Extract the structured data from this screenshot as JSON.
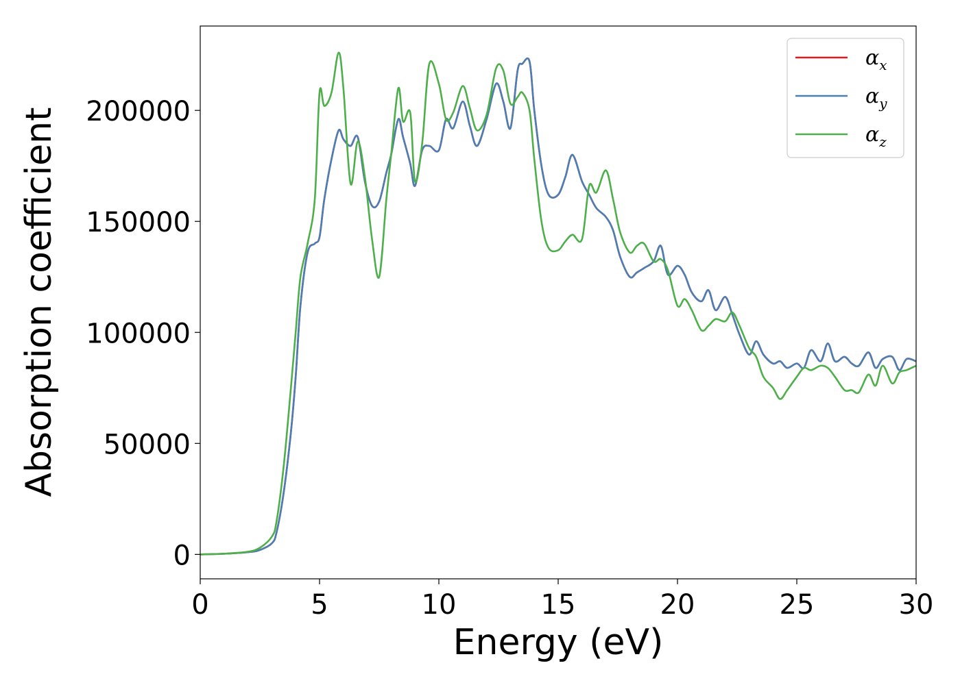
{
  "chart_data": {
    "type": "line",
    "title": "",
    "xlabel": "Energy (eV)",
    "ylabel": "Absorption coefficient",
    "xlim": [
      0,
      30
    ],
    "ylim": [
      -11000,
      238000
    ],
    "xticks": [
      0,
      5,
      10,
      15,
      20,
      25,
      30
    ],
    "xtick_labels": [
      "0",
      "5",
      "10",
      "15",
      "20",
      "25",
      "30"
    ],
    "yticks": [
      0,
      50000,
      100000,
      150000,
      200000
    ],
    "ytick_labels": [
      "0",
      "50000",
      "100000",
      "150000",
      "200000"
    ],
    "grid": false,
    "legend_position": "top-right",
    "series": [
      {
        "name": "αx",
        "symbol": "α",
        "subscript": "x",
        "color": "#e41a1c",
        "x": [
          0,
          1,
          2,
          2.5,
          3,
          3.2,
          3.5,
          3.8,
          4,
          4.2,
          4.5,
          4.8,
          5,
          5.2,
          5.5,
          5.8,
          6,
          6.3,
          6.6,
          6.9,
          7.2,
          7.5,
          7.8,
          8,
          8.3,
          8.5,
          8.8,
          9,
          9.3,
          9.6,
          10,
          10.3,
          10.6,
          11,
          11.3,
          11.6,
          12,
          12.4,
          12.7,
          13,
          13.3,
          13.5,
          13.8,
          14,
          14.3,
          14.6,
          15,
          15.3,
          15.6,
          16,
          16.3,
          16.6,
          17,
          17.3,
          17.6,
          18,
          18.3,
          18.6,
          19,
          19.3,
          19.6,
          20,
          20.3,
          20.6,
          21,
          21.3,
          21.6,
          22,
          22.3,
          22.6,
          23,
          23.3,
          23.6,
          24,
          24.3,
          24.6,
          25,
          25.3,
          25.6,
          26,
          26.3,
          26.6,
          27,
          27.3,
          27.6,
          28,
          28.3,
          28.6,
          29,
          29.3,
          29.6,
          30
        ],
        "y": [
          0,
          300,
          1000,
          2000,
          5000,
          10000,
          28000,
          55000,
          80000,
          112000,
          136000,
          140000,
          143000,
          160000,
          178000,
          191000,
          187000,
          184000,
          188000,
          168000,
          157000,
          159000,
          172000,
          180000,
          196000,
          188000,
          176000,
          166000,
          182000,
          184000,
          182000,
          196000,
          192000,
          204000,
          193000,
          184000,
          196000,
          212000,
          204000,
          192000,
          218000,
          221000,
          222000,
          200000,
          175000,
          162000,
          162000,
          170000,
          180000,
          168000,
          162000,
          156000,
          152000,
          146000,
          134000,
          125000,
          127000,
          129000,
          132000,
          139000,
          126000,
          130000,
          126000,
          118000,
          114000,
          119000,
          110000,
          116000,
          108000,
          99000,
          90000,
          96000,
          90000,
          86000,
          87000,
          84000,
          86000,
          84000,
          92000,
          87000,
          95000,
          87000,
          89000,
          86000,
          85000,
          91000,
          84000,
          88000,
          89000,
          83000,
          88000,
          87000
        ]
      },
      {
        "name": "αy",
        "symbol": "α",
        "subscript": "y",
        "color": "#4a7fb5",
        "x": [
          0,
          1,
          2,
          2.5,
          3,
          3.2,
          3.5,
          3.8,
          4,
          4.2,
          4.5,
          4.8,
          5,
          5.2,
          5.5,
          5.8,
          6,
          6.3,
          6.6,
          6.9,
          7.2,
          7.5,
          7.8,
          8,
          8.3,
          8.5,
          8.8,
          9,
          9.3,
          9.6,
          10,
          10.3,
          10.6,
          11,
          11.3,
          11.6,
          12,
          12.4,
          12.7,
          13,
          13.3,
          13.5,
          13.8,
          14,
          14.3,
          14.6,
          15,
          15.3,
          15.6,
          16,
          16.3,
          16.6,
          17,
          17.3,
          17.6,
          18,
          18.3,
          18.6,
          19,
          19.3,
          19.6,
          20,
          20.3,
          20.6,
          21,
          21.3,
          21.6,
          22,
          22.3,
          22.6,
          23,
          23.3,
          23.6,
          24,
          24.3,
          24.6,
          25,
          25.3,
          25.6,
          26,
          26.3,
          26.6,
          27,
          27.3,
          27.6,
          28,
          28.3,
          28.6,
          29,
          29.3,
          29.6,
          30
        ],
        "y": [
          0,
          300,
          1000,
          2000,
          5000,
          10000,
          28000,
          55000,
          80000,
          112000,
          136000,
          140000,
          143000,
          160000,
          178000,
          191000,
          187000,
          184000,
          188000,
          168000,
          157000,
          159000,
          172000,
          180000,
          196000,
          188000,
          176000,
          166000,
          182000,
          184000,
          182000,
          196000,
          192000,
          204000,
          193000,
          184000,
          196000,
          212000,
          204000,
          192000,
          218000,
          221000,
          222000,
          200000,
          175000,
          162000,
          162000,
          170000,
          180000,
          168000,
          162000,
          156000,
          152000,
          146000,
          134000,
          125000,
          127000,
          129000,
          132000,
          139000,
          126000,
          130000,
          126000,
          118000,
          114000,
          119000,
          110000,
          116000,
          108000,
          99000,
          90000,
          96000,
          90000,
          86000,
          87000,
          84000,
          86000,
          84000,
          92000,
          87000,
          95000,
          87000,
          89000,
          86000,
          85000,
          91000,
          84000,
          88000,
          89000,
          83000,
          88000,
          87000
        ]
      },
      {
        "name": "αz",
        "symbol": "α",
        "subscript": "z",
        "color": "#4daf4a",
        "x": [
          0,
          1,
          2,
          2.5,
          3,
          3.2,
          3.5,
          3.8,
          4,
          4.2,
          4.5,
          4.8,
          5,
          5.2,
          5.5,
          5.8,
          6,
          6.3,
          6.6,
          6.9,
          7.2,
          7.5,
          7.8,
          8,
          8.3,
          8.5,
          8.8,
          9,
          9.3,
          9.6,
          10,
          10.3,
          10.6,
          11,
          11.3,
          11.6,
          12,
          12.4,
          12.7,
          13,
          13.3,
          13.5,
          13.8,
          14,
          14.3,
          14.6,
          15,
          15.3,
          15.6,
          16,
          16.3,
          16.6,
          17,
          17.3,
          17.6,
          18,
          18.3,
          18.6,
          19,
          19.3,
          19.6,
          20,
          20.3,
          20.6,
          21,
          21.3,
          21.6,
          22,
          22.3,
          22.6,
          23,
          23.3,
          23.6,
          24,
          24.3,
          24.6,
          25,
          25.3,
          25.6,
          26,
          26.3,
          26.6,
          27,
          27.3,
          27.6,
          28,
          28.3,
          28.6,
          29,
          29.3,
          29.6,
          30
        ],
        "y": [
          0,
          300,
          1200,
          3000,
          8000,
          15000,
          40000,
          75000,
          100000,
          125000,
          140000,
          160000,
          208000,
          202000,
          208000,
          226000,
          210000,
          167000,
          186000,
          170000,
          142000,
          125000,
          160000,
          180000,
          210000,
          195000,
          199000,
          168000,
          185000,
          221000,
          212000,
          196000,
          199000,
          211000,
          201000,
          191000,
          198000,
          219000,
          218000,
          203000,
          206000,
          208000,
          200000,
          178000,
          150000,
          138000,
          137000,
          141000,
          144000,
          142000,
          166000,
          163000,
          173000,
          160000,
          145000,
          136000,
          139000,
          140000,
          132000,
          133000,
          128000,
          112000,
          115000,
          110000,
          101000,
          103000,
          106000,
          105000,
          109000,
          103000,
          93000,
          89000,
          80000,
          75000,
          70000,
          74000,
          80000,
          84000,
          83000,
          85000,
          84000,
          80000,
          74000,
          74000,
          73000,
          81000,
          76000,
          85000,
          77000,
          82000,
          83000,
          85000
        ]
      }
    ]
  }
}
